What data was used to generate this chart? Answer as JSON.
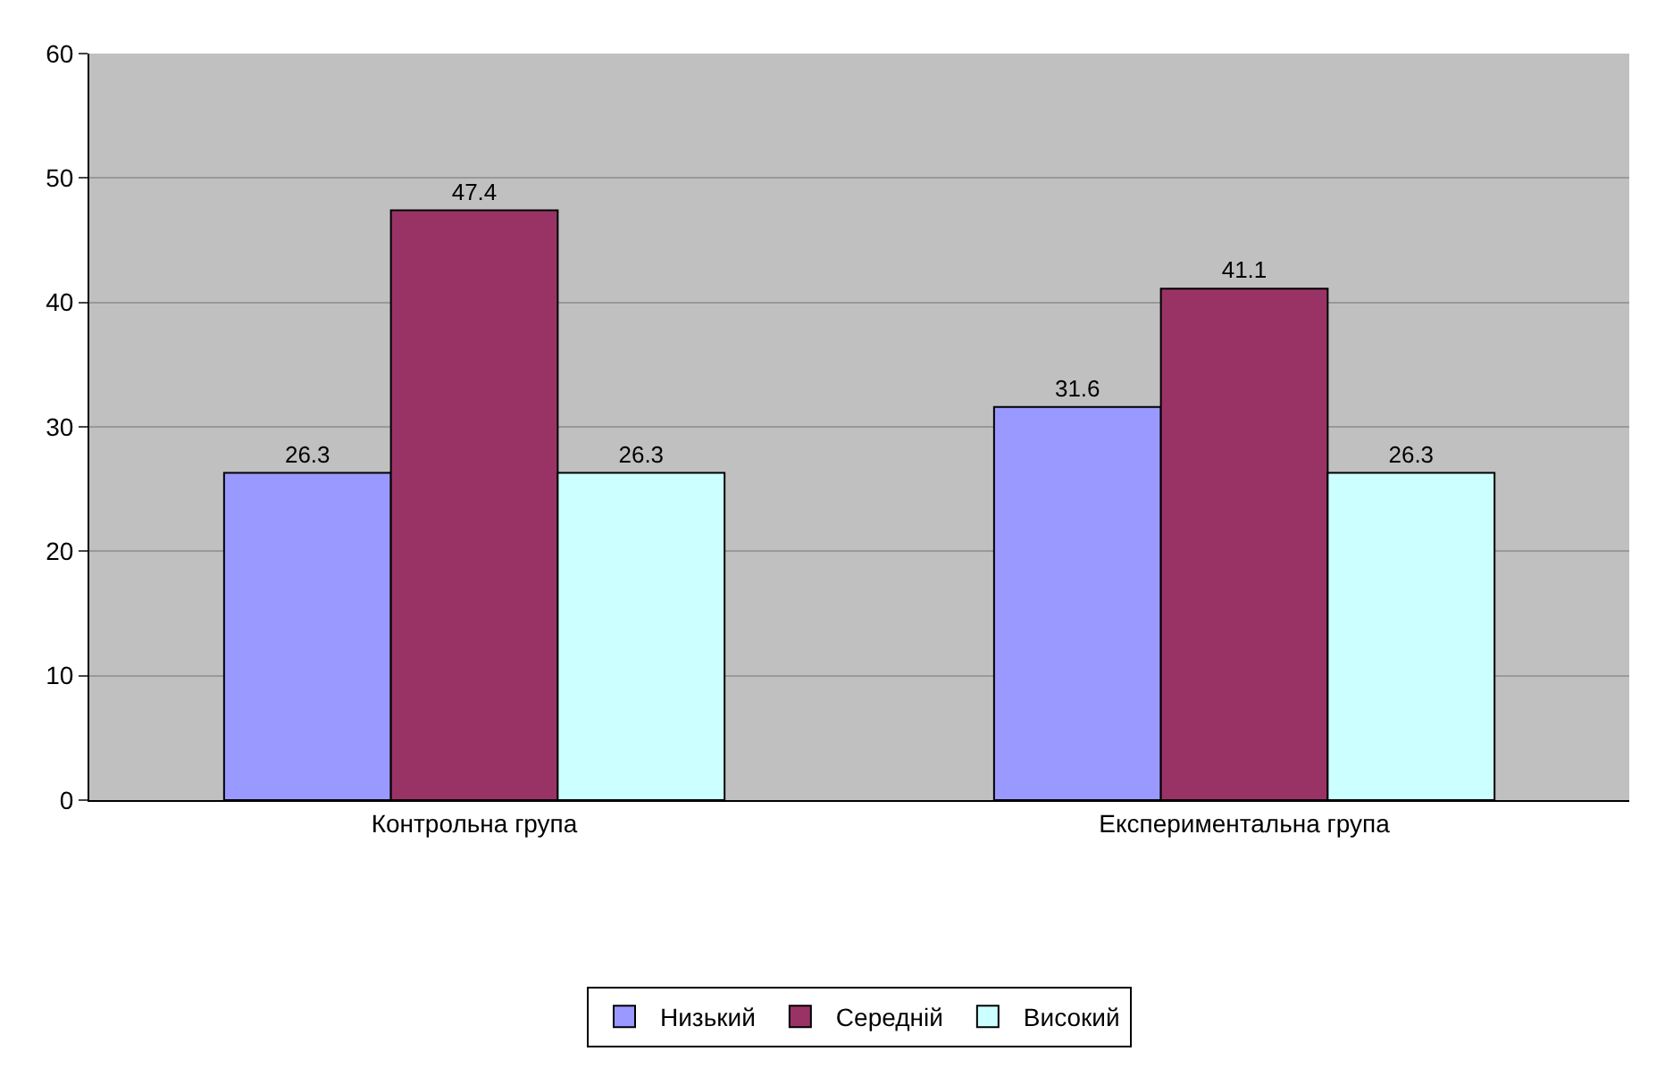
{
  "chart_data": {
    "type": "bar",
    "categories": [
      "Контрольна група",
      "Експериментальна група"
    ],
    "series": [
      {
        "name": "Низький",
        "color": "#9999ff",
        "values": [
          26.3,
          31.6
        ]
      },
      {
        "name": "Середній",
        "color": "#993366",
        "values": [
          47.4,
          41.1
        ]
      },
      {
        "name": "Високий",
        "color": "#ccffff",
        "values": [
          26.3,
          26.3
        ]
      }
    ],
    "ylim": [
      0,
      60
    ],
    "yticks": [
      0,
      10,
      20,
      30,
      40,
      50,
      60
    ],
    "grid": "y",
    "legend": "bottom",
    "data_labels": true
  }
}
